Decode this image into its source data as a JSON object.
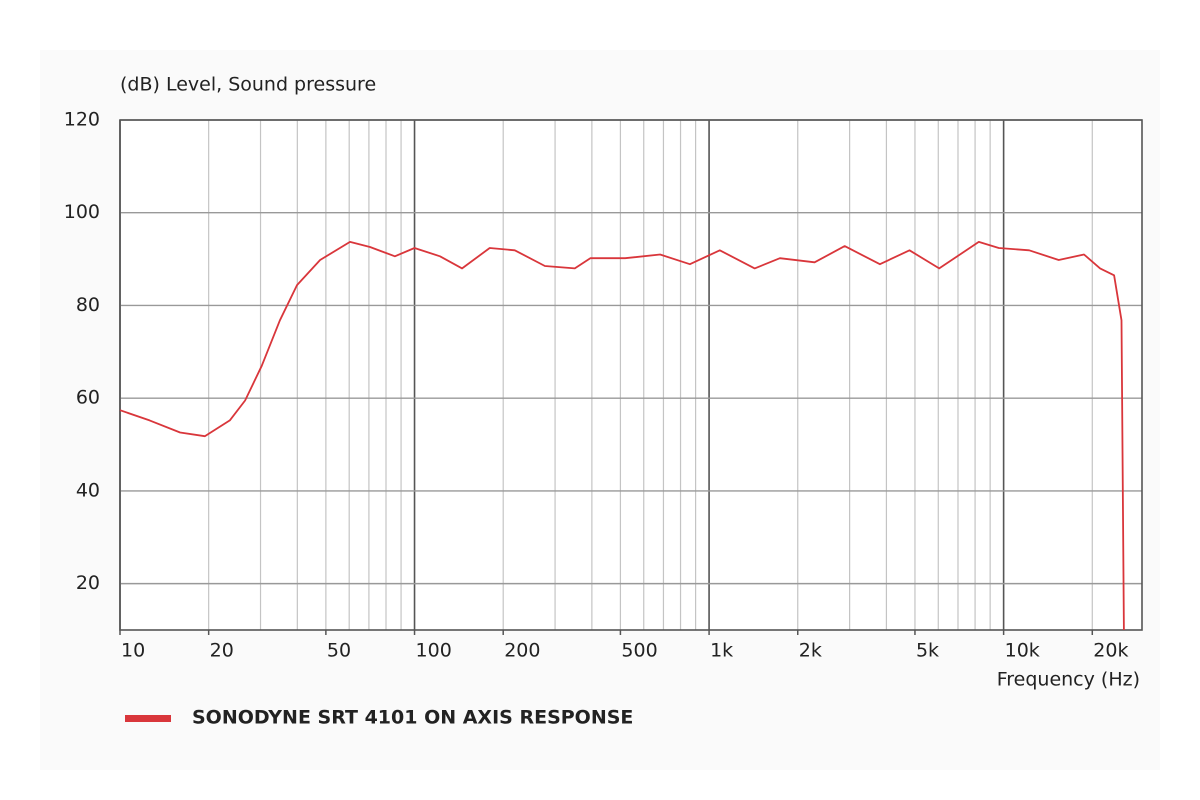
{
  "chart_data": {
    "type": "line",
    "y_axis_label": "(dB)  Level, Sound pressure",
    "x_axis_label": "Frequency  (Hz)",
    "x_scale": "log",
    "xlim": [
      10,
      29500
    ],
    "ylim": [
      10,
      120
    ],
    "yticks": [
      20,
      40,
      60,
      80,
      100,
      120
    ],
    "xticks": [
      10,
      20,
      50,
      100,
      200,
      500,
      {
        "value": 1000,
        "label": "1k"
      },
      {
        "value": 2000,
        "label": "2k"
      },
      {
        "value": 5000,
        "label": "5k"
      },
      {
        "value": 10000,
        "label": "10k"
      },
      {
        "value": 20000,
        "label": "20k"
      }
    ],
    "x_grid": [
      10,
      20,
      30,
      40,
      50,
      60,
      70,
      80,
      90,
      100,
      200,
      300,
      400,
      500,
      600,
      700,
      800,
      900,
      1000,
      2000,
      3000,
      4000,
      5000,
      6000,
      7000,
      8000,
      9000,
      10000,
      20000
    ],
    "grid": true,
    "legend": "bottom-left",
    "series": [
      {
        "name": "SONODYNE SRT 4101 ON AXIS RESPONSE",
        "color": "#d9363b",
        "x": [
          10,
          12.6,
          16,
          19.4,
          23.6,
          26.6,
          30.3,
          34.9,
          39.9,
          47.8,
          60.4,
          70.6,
          85.8,
          100,
          122,
          145,
          180,
          219,
          277,
          350,
          395,
          519,
          682,
          861,
          1087,
          1428,
          1739,
          2282,
          2888,
          3801,
          4791,
          6042,
          8236,
          9632,
          12210,
          15380,
          18740,
          21260,
          23720,
          25130,
          25600
        ],
        "values": [
          57.4,
          55.2,
          52.6,
          51.8,
          55.2,
          59.5,
          67,
          76.8,
          84.4,
          89.8,
          93.7,
          92.6,
          90.6,
          92.4,
          90.6,
          88,
          92.4,
          91.9,
          88.5,
          88,
          90.2,
          90.2,
          91,
          88.9,
          91.9,
          88,
          90.2,
          89.3,
          92.8,
          88.9,
          91.9,
          88,
          93.7,
          92.4,
          91.9,
          89.8,
          91,
          88,
          86.5,
          76.8,
          10
        ]
      }
    ]
  }
}
